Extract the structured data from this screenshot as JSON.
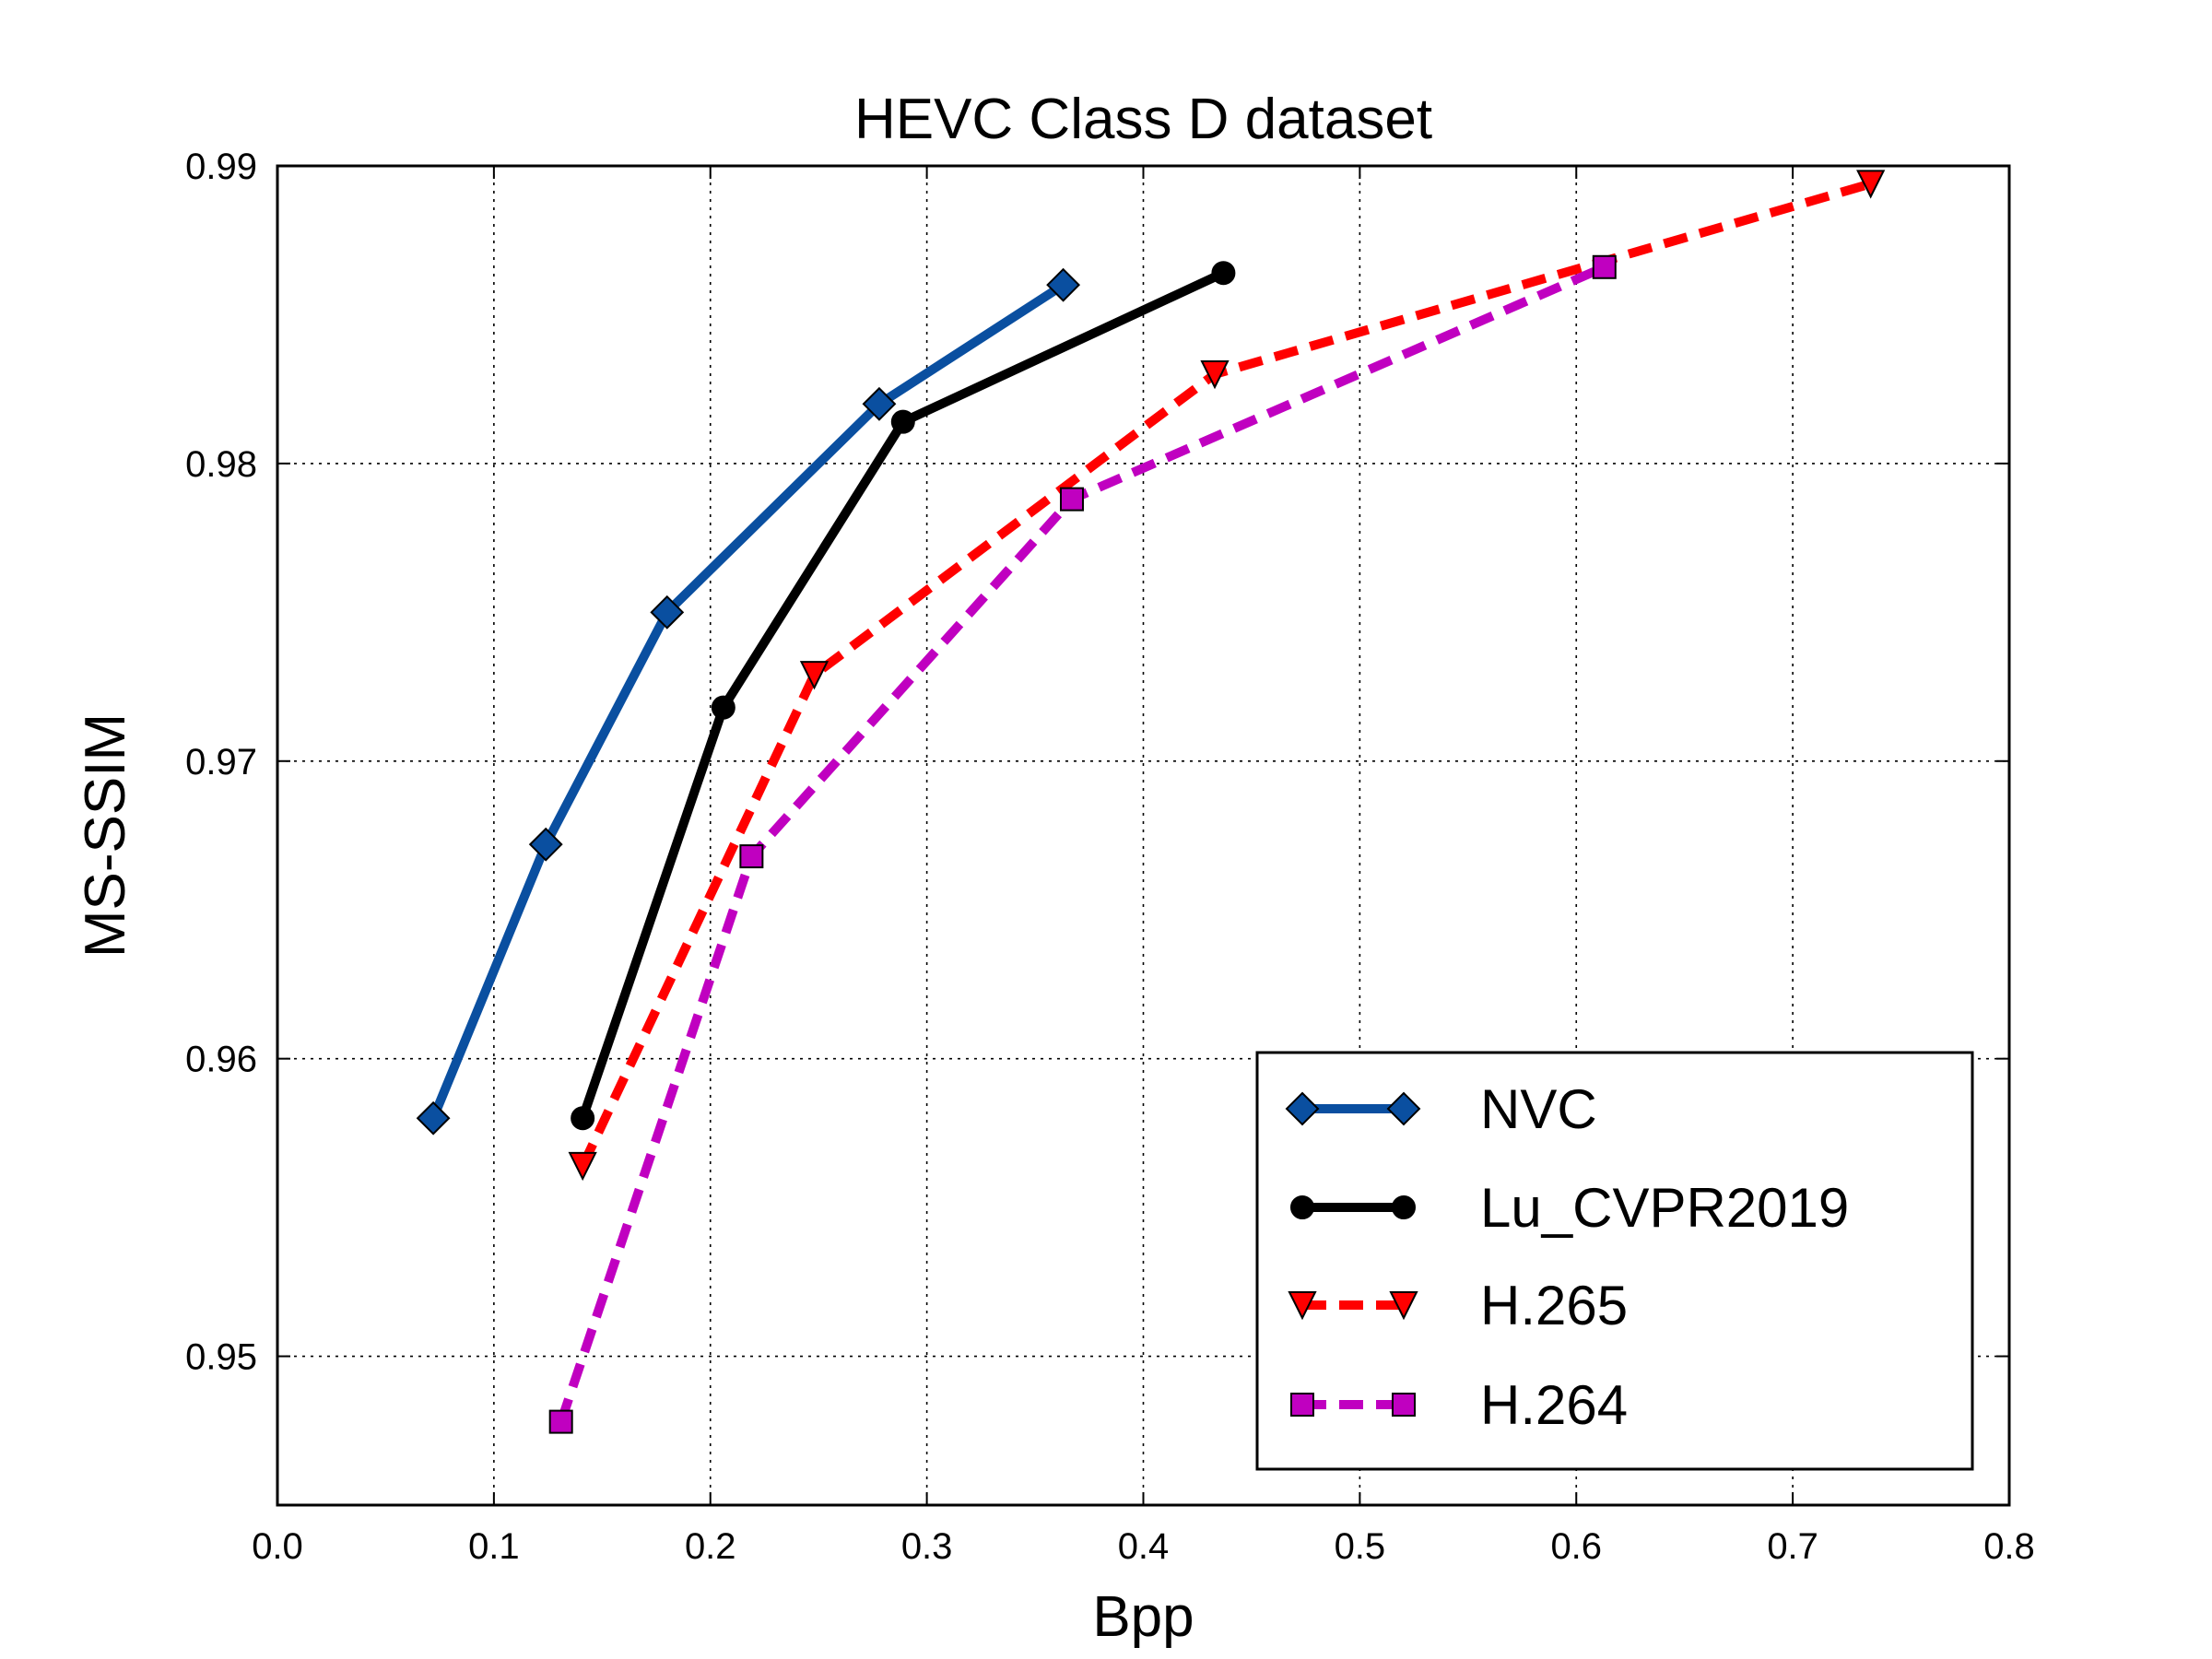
{
  "chart_data": {
    "type": "line",
    "title": "HEVC Class D dataset",
    "xlabel": "Bpp",
    "ylabel": "MS-SSIM",
    "xlim": [
      0.0,
      0.8
    ],
    "ylim": [
      0.945,
      0.99
    ],
    "xticks": [
      0.0,
      0.1,
      0.2,
      0.3,
      0.4,
      0.5,
      0.6,
      0.7,
      0.8
    ],
    "xtick_labels": [
      "0.0",
      "0.1",
      "0.2",
      "0.3",
      "0.4",
      "0.5",
      "0.6",
      "0.7",
      "0.8"
    ],
    "yticks": [
      0.95,
      0.96,
      0.97,
      0.98,
      0.99
    ],
    "ytick_labels": [
      "0.95",
      "0.96",
      "0.97",
      "0.98",
      "0.99"
    ],
    "grid": true,
    "legend_position": "bottom-right",
    "series": [
      {
        "name": "NVC",
        "color": "#0a4fa0",
        "dash": "solid",
        "marker": "diamond",
        "x": [
          0.072,
          0.124,
          0.18,
          0.278,
          0.363
        ],
        "y": [
          0.958,
          0.9672,
          0.975,
          0.982,
          0.986
        ]
      },
      {
        "name": "Lu_CVPR2019",
        "color": "#000000",
        "dash": "solid",
        "marker": "circle",
        "x": [
          0.141,
          0.206,
          0.289,
          0.437
        ],
        "y": [
          0.958,
          0.9718,
          0.9814,
          0.9864
        ]
      },
      {
        "name": "H.265",
        "color": "#ff0000",
        "dash": "dashed",
        "marker": "triangle-down",
        "x": [
          0.141,
          0.248,
          0.433,
          0.736
        ],
        "y": [
          0.9564,
          0.9729,
          0.983,
          0.9894
        ]
      },
      {
        "name": "H.264",
        "color": "#c000c0",
        "dash": "dashed",
        "marker": "square",
        "x": [
          0.131,
          0.219,
          0.367,
          0.613
        ],
        "y": [
          0.9478,
          0.9668,
          0.9788,
          0.9866
        ]
      }
    ]
  }
}
